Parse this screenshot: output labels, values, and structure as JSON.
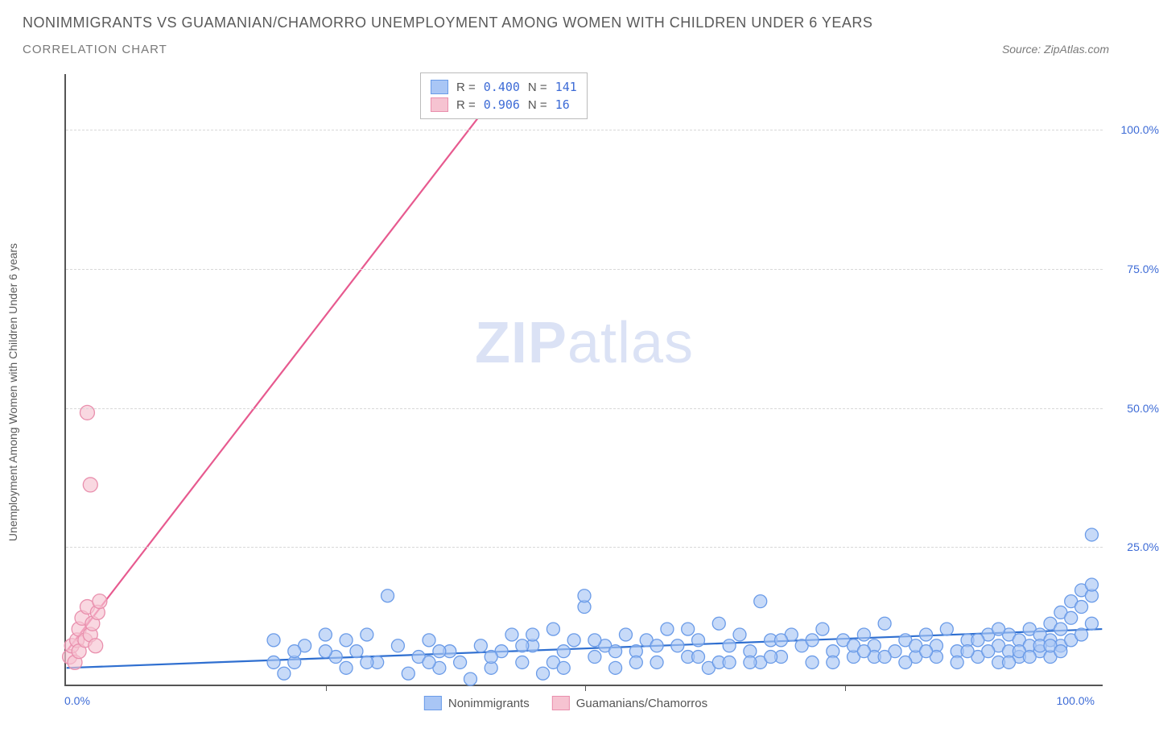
{
  "header": {
    "title": "NONIMMIGRANTS VS GUAMANIAN/CHAMORRO UNEMPLOYMENT AMONG WOMEN WITH CHILDREN UNDER 6 YEARS",
    "subtitle": "CORRELATION CHART",
    "source": "Source: ZipAtlas.com"
  },
  "watermark": {
    "part1": "ZIP",
    "part2": "atlas"
  },
  "axes": {
    "ylabel": "Unemployment Among Women with Children Under 6 years",
    "xlim": [
      0,
      100
    ],
    "ylim": [
      0,
      110
    ],
    "yticks": [
      25,
      50,
      75,
      100
    ],
    "ytick_labels": [
      "25.0%",
      "50.0%",
      "75.0%",
      "100.0%"
    ],
    "xtick_positions": [
      25,
      50,
      75
    ],
    "xmin_label": "0.0%",
    "xmax_label": "100.0%",
    "grid_color": "#d8d8d8"
  },
  "series": {
    "blue": {
      "label": "Nonimmigrants",
      "fill": "#a9c6f5",
      "stroke": "#6a9be8",
      "line_color": "#2f6fd0",
      "r_label": "R =",
      "r_value": "0.400",
      "n_label": "N =",
      "n_value": "141",
      "trend": {
        "x1": 0,
        "y1": 3.0,
        "x2": 100,
        "y2": 10.0
      },
      "marker_radius": 8,
      "points": [
        [
          20,
          8
        ],
        [
          21,
          2
        ],
        [
          22,
          4
        ],
        [
          23,
          7
        ],
        [
          25,
          9
        ],
        [
          26,
          5
        ],
        [
          27,
          3
        ],
        [
          28,
          6
        ],
        [
          29,
          9
        ],
        [
          30,
          4
        ],
        [
          31,
          16
        ],
        [
          32,
          7
        ],
        [
          33,
          2
        ],
        [
          34,
          5
        ],
        [
          35,
          8
        ],
        [
          36,
          3
        ],
        [
          37,
          6
        ],
        [
          38,
          4
        ],
        [
          39,
          1
        ],
        [
          40,
          7
        ],
        [
          41,
          3
        ],
        [
          42,
          6
        ],
        [
          43,
          9
        ],
        [
          44,
          4
        ],
        [
          45,
          7
        ],
        [
          46,
          2
        ],
        [
          47,
          10
        ],
        [
          48,
          6
        ],
        [
          49,
          8
        ],
        [
          50,
          14
        ],
        [
          50,
          16
        ],
        [
          51,
          5
        ],
        [
          52,
          7
        ],
        [
          53,
          3
        ],
        [
          54,
          9
        ],
        [
          55,
          6
        ],
        [
          56,
          8
        ],
        [
          57,
          4
        ],
        [
          58,
          10
        ],
        [
          59,
          7
        ],
        [
          60,
          5
        ],
        [
          61,
          8
        ],
        [
          62,
          3
        ],
        [
          63,
          11
        ],
        [
          64,
          7
        ],
        [
          65,
          9
        ],
        [
          66,
          6
        ],
        [
          67,
          15
        ],
        [
          68,
          8
        ],
        [
          69,
          5
        ],
        [
          70,
          9
        ],
        [
          71,
          7
        ],
        [
          72,
          4
        ],
        [
          73,
          10
        ],
        [
          74,
          6
        ],
        [
          75,
          8
        ],
        [
          76,
          5
        ],
        [
          77,
          9
        ],
        [
          78,
          7
        ],
        [
          79,
          11
        ],
        [
          80,
          6
        ],
        [
          81,
          8
        ],
        [
          82,
          5
        ],
        [
          83,
          9
        ],
        [
          84,
          7
        ],
        [
          85,
          10
        ],
        [
          86,
          6
        ],
        [
          87,
          8
        ],
        [
          88,
          5
        ],
        [
          89,
          9
        ],
        [
          90,
          7
        ],
        [
          90,
          4
        ],
        [
          91,
          6
        ],
        [
          91,
          9
        ],
        [
          92,
          5
        ],
        [
          92,
          8
        ],
        [
          93,
          7
        ],
        [
          93,
          10
        ],
        [
          94,
          6
        ],
        [
          94,
          9
        ],
        [
          95,
          8
        ],
        [
          95,
          11
        ],
        [
          95,
          5
        ],
        [
          96,
          7
        ],
        [
          96,
          10
        ],
        [
          96,
          13
        ],
        [
          97,
          8
        ],
        [
          97,
          12
        ],
        [
          97,
          15
        ],
        [
          98,
          9
        ],
        [
          98,
          14
        ],
        [
          98,
          17
        ],
        [
          99,
          11
        ],
        [
          99,
          16
        ],
        [
          99,
          18
        ],
        [
          99,
          27
        ],
        [
          63,
          4
        ],
        [
          67,
          4
        ],
        [
          45,
          9
        ],
        [
          82,
          7
        ],
        [
          55,
          4
        ],
        [
          22,
          6
        ],
        [
          88,
          8
        ],
        [
          76,
          7
        ],
        [
          57,
          7
        ],
        [
          47,
          4
        ],
        [
          29,
          4
        ],
        [
          60,
          10
        ],
        [
          35,
          4
        ],
        [
          72,
          8
        ],
        [
          81,
          4
        ],
        [
          84,
          5
        ],
        [
          86,
          4
        ],
        [
          78,
          5
        ],
        [
          68,
          5
        ],
        [
          90,
          10
        ],
        [
          94,
          7
        ],
        [
          51,
          8
        ],
        [
          66,
          4
        ],
        [
          44,
          7
        ],
        [
          41,
          5
        ],
        [
          36,
          6
        ],
        [
          20,
          4
        ],
        [
          25,
          6
        ],
        [
          27,
          8
        ],
        [
          48,
          3
        ],
        [
          53,
          6
        ],
        [
          61,
          5
        ],
        [
          64,
          4
        ],
        [
          69,
          8
        ],
        [
          74,
          4
        ],
        [
          77,
          6
        ],
        [
          79,
          5
        ],
        [
          83,
          6
        ],
        [
          87,
          6
        ],
        [
          89,
          6
        ],
        [
          91,
          4
        ],
        [
          92,
          6
        ],
        [
          93,
          5
        ],
        [
          95,
          7
        ],
        [
          96,
          6
        ]
      ]
    },
    "pink": {
      "label": "Guamanians/Chamorros",
      "fill": "#f6c3d1",
      "stroke": "#e98fad",
      "line_color": "#e75a8f",
      "r_label": "R =",
      "r_value": "0.906",
      "n_label": "N =",
      "n_value": " 16",
      "trend": {
        "x1": 0,
        "y1": 6.0,
        "x2": 43,
        "y2": 110
      },
      "marker_radius": 9,
      "points": [
        [
          0.3,
          5
        ],
        [
          0.5,
          7
        ],
        [
          0.8,
          4
        ],
        [
          1.0,
          8
        ],
        [
          1.2,
          6
        ],
        [
          1.2,
          10
        ],
        [
          1.5,
          12
        ],
        [
          1.8,
          8
        ],
        [
          2.0,
          14
        ],
        [
          2.3,
          9
        ],
        [
          2.5,
          11
        ],
        [
          2.8,
          7
        ],
        [
          3.0,
          13
        ],
        [
          3.2,
          15
        ],
        [
          2.3,
          36
        ],
        [
          2.0,
          49
        ]
      ]
    }
  },
  "colors": {
    "text_primary": "#5a5a5a",
    "text_secondary": "#7a7a7a",
    "tick_blue": "#3d6bd6",
    "background": "#ffffff"
  }
}
